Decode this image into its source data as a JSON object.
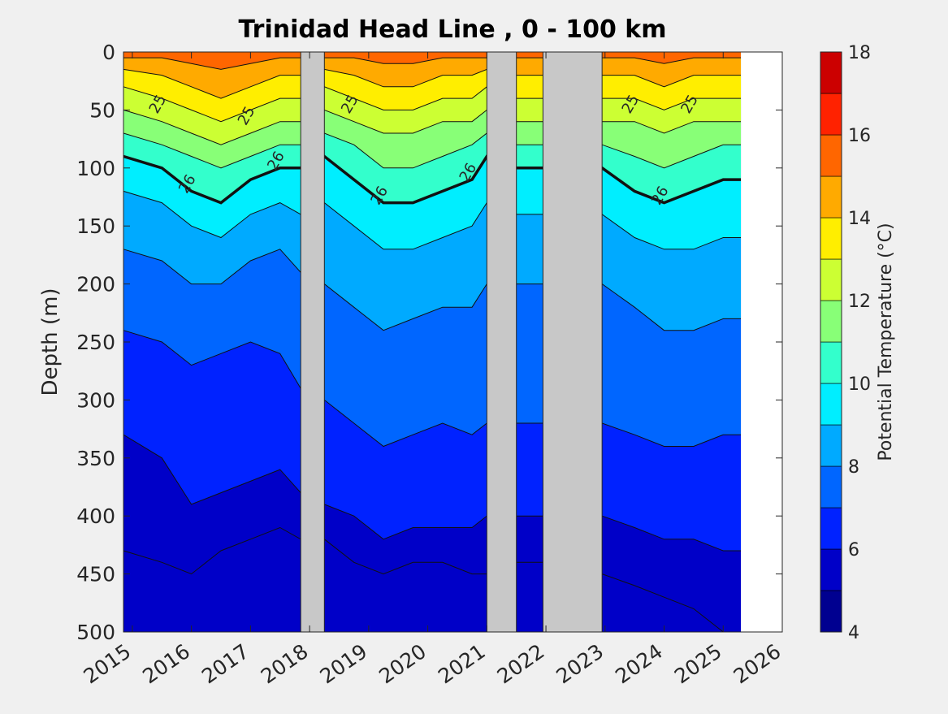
{
  "chart_data": {
    "type": "heatmap",
    "title": "Trinidad Head Line , 0 - 100 km",
    "xlabel": "",
    "ylabel": "Depth (m)",
    "xlim": [
      2014.85,
      2026.0
    ],
    "ylim": [
      0,
      500
    ],
    "y_reversed": true,
    "xticks": [
      "2015",
      "2016",
      "2017",
      "2018",
      "2019",
      "2020",
      "2021",
      "2022",
      "2023",
      "2024",
      "2025",
      "2026"
    ],
    "yticks": [
      "0",
      "50",
      "100",
      "150",
      "200",
      "250",
      "300",
      "350",
      "400",
      "450",
      "500"
    ],
    "colorbar": {
      "label": "Potential Temperature (°C)",
      "range": [
        4,
        18
      ],
      "ticks": [
        "4",
        "6",
        "8",
        "10",
        "12",
        "14",
        "16",
        "18"
      ],
      "levels": [
        {
          "from": 4,
          "to": 5,
          "color": "#000090"
        },
        {
          "from": 5,
          "to": 6,
          "color": "#0000c8"
        },
        {
          "from": 6,
          "to": 7,
          "color": "#0022ff"
        },
        {
          "from": 7,
          "to": 8,
          "color": "#0066ff"
        },
        {
          "from": 8,
          "to": 9,
          "color": "#00aaff"
        },
        {
          "from": 9,
          "to": 10,
          "color": "#00eeff"
        },
        {
          "from": 10,
          "to": 11,
          "color": "#33ffcc"
        },
        {
          "from": 11,
          "to": 12,
          "color": "#88ff77"
        },
        {
          "from": 12,
          "to": 13,
          "color": "#ccff33"
        },
        {
          "from": 13,
          "to": 14,
          "color": "#ffee00"
        },
        {
          "from": 14,
          "to": 15,
          "color": "#ffaa00"
        },
        {
          "from": 15,
          "to": 16,
          "color": "#ff6600"
        },
        {
          "from": 16,
          "to": 17,
          "color": "#ff2200"
        },
        {
          "from": 17,
          "to": 18,
          "color": "#cc0000"
        }
      ]
    },
    "data_gaps": [
      {
        "from": 2017.85,
        "to": 2018.25
      },
      {
        "from": 2021.0,
        "to": 2021.5
      },
      {
        "from": 2021.95,
        "to": 2022.95
      }
    ],
    "no_data_after": 2025.3,
    "isopycnal_labels": [
      "25",
      "26"
    ],
    "depth_of_isotherms_m": {
      "x": [
        2014.85,
        2015.5,
        2016.0,
        2016.5,
        2017.0,
        2017.5,
        2017.85,
        2018.25,
        2018.75,
        2019.25,
        2019.75,
        2020.25,
        2020.75,
        2021.0,
        2021.5,
        2021.95,
        2022.95,
        2023.5,
        2024.0,
        2024.5,
        2025.0,
        2025.3
      ],
      "series": [
        {
          "temperature": 5,
          "depths": [
            430,
            440,
            450,
            430,
            420,
            410,
            420,
            420,
            440,
            450,
            440,
            440,
            450,
            450,
            440,
            440,
            450,
            460,
            470,
            480,
            500,
            500
          ]
        },
        {
          "temperature": 6,
          "depths": [
            330,
            350,
            390,
            380,
            370,
            360,
            380,
            390,
            400,
            420,
            410,
            410,
            410,
            400,
            400,
            400,
            400,
            410,
            420,
            420,
            430,
            430
          ]
        },
        {
          "temperature": 7,
          "depths": [
            240,
            250,
            270,
            260,
            250,
            260,
            290,
            300,
            320,
            340,
            330,
            320,
            330,
            320,
            320,
            320,
            320,
            330,
            340,
            340,
            330,
            330
          ]
        },
        {
          "temperature": 8,
          "depths": [
            170,
            180,
            200,
            200,
            180,
            170,
            190,
            200,
            220,
            240,
            230,
            220,
            220,
            200,
            200,
            200,
            200,
            220,
            240,
            240,
            230,
            230
          ]
        },
        {
          "temperature": 9,
          "depths": [
            120,
            130,
            150,
            160,
            140,
            130,
            140,
            130,
            150,
            170,
            170,
            160,
            150,
            130,
            140,
            140,
            140,
            160,
            170,
            170,
            160,
            160
          ]
        },
        {
          "temperature": 10,
          "depths": [
            90,
            100,
            120,
            130,
            110,
            100,
            100,
            90,
            110,
            130,
            130,
            120,
            110,
            90,
            100,
            100,
            100,
            120,
            130,
            120,
            110,
            110
          ]
        },
        {
          "temperature": 11,
          "depths": [
            70,
            80,
            90,
            100,
            90,
            80,
            80,
            70,
            80,
            100,
            100,
            90,
            80,
            70,
            80,
            80,
            80,
            90,
            100,
            90,
            80,
            80
          ]
        },
        {
          "temperature": 12,
          "depths": [
            50,
            60,
            70,
            80,
            70,
            60,
            60,
            50,
            60,
            70,
            70,
            60,
            60,
            50,
            60,
            60,
            60,
            60,
            70,
            60,
            60,
            60
          ]
        },
        {
          "temperature": 13,
          "depths": [
            30,
            40,
            50,
            60,
            50,
            40,
            40,
            30,
            40,
            50,
            50,
            40,
            40,
            30,
            40,
            40,
            40,
            40,
            50,
            40,
            40,
            40
          ]
        },
        {
          "temperature": 14,
          "depths": [
            15,
            20,
            30,
            40,
            30,
            20,
            20,
            15,
            20,
            30,
            30,
            20,
            20,
            15,
            20,
            20,
            20,
            20,
            30,
            20,
            20,
            20
          ]
        },
        {
          "temperature": 15,
          "depths": [
            5,
            5,
            10,
            15,
            10,
            5,
            5,
            5,
            5,
            10,
            10,
            5,
            5,
            5,
            5,
            5,
            5,
            5,
            10,
            5,
            5,
            5
          ]
        }
      ]
    }
  }
}
